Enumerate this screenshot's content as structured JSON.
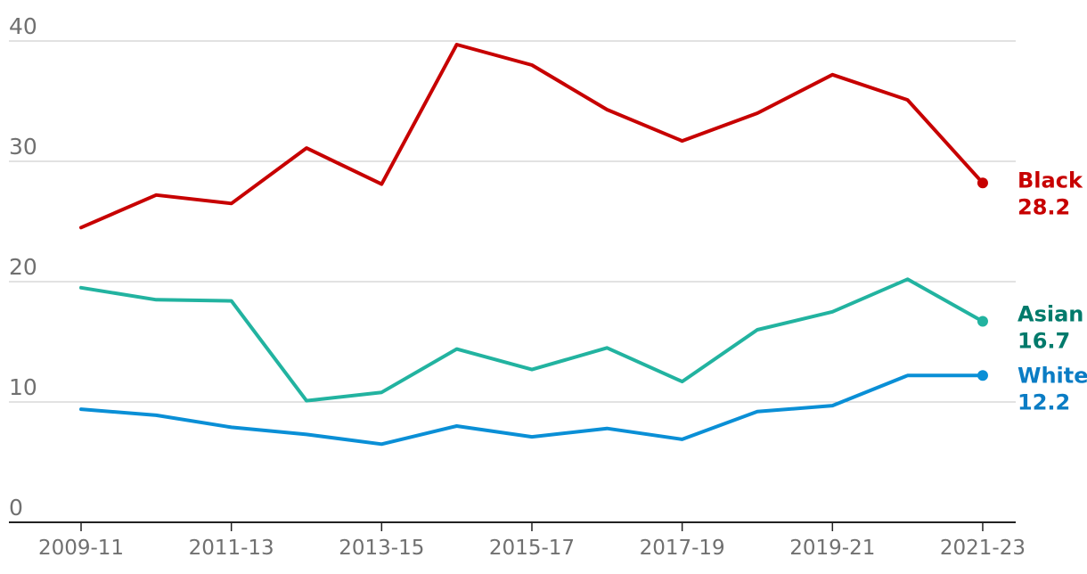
{
  "chart_data": {
    "type": "line",
    "x": [
      "2009-11",
      "2010-12",
      "2011-13",
      "2012-14",
      "2013-15",
      "2014-16",
      "2015-17",
      "2016-18",
      "2017-19",
      "2018-20",
      "2019-21",
      "2020-22",
      "2021-23"
    ],
    "x_tick_labels": [
      "2009-11",
      "2011-13",
      "2013-15",
      "2015-17",
      "2017-19",
      "2019-21",
      "2021-23"
    ],
    "ylim": [
      0,
      40
    ],
    "y_ticks": [
      0,
      10,
      20,
      30,
      40
    ],
    "grid": true,
    "series": [
      {
        "name": "Black",
        "color": "#c70000",
        "end_value": "28.2",
        "values": [
          24.5,
          27.2,
          26.5,
          31.1,
          28.1,
          39.7,
          38.0,
          34.3,
          31.7,
          34.0,
          37.2,
          35.1,
          28.2
        ]
      },
      {
        "name": "Asian",
        "color": "#22b3a0",
        "label_color": "#007a6b",
        "end_value": "16.7",
        "values": [
          19.5,
          18.5,
          18.4,
          10.1,
          10.8,
          14.4,
          12.7,
          14.5,
          11.7,
          16.0,
          17.5,
          20.2,
          16.7
        ]
      },
      {
        "name": "White",
        "color": "#0a8fd6",
        "label_color": "#0a7cc4",
        "end_value": "12.2",
        "values": [
          9.4,
          8.9,
          7.9,
          7.3,
          6.5,
          8.0,
          7.1,
          7.8,
          6.9,
          9.2,
          9.7,
          12.2,
          12.2
        ]
      }
    ]
  }
}
